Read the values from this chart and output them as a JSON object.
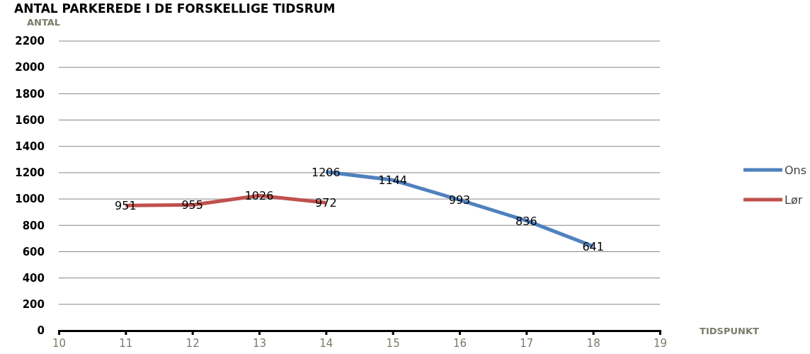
{
  "chart_data": {
    "type": "line",
    "title": "ANTAL PARKEREDE I DE FORSKELLIGE TIDSRUM",
    "xlabel": "TIDSPUNKT",
    "ylabel": "ANTAL",
    "series": [
      {
        "name": "Ons",
        "color": "#4f81bd",
        "x": [
          14,
          15,
          16,
          17,
          18
        ],
        "values": [
          1206,
          1144,
          993,
          836,
          641
        ]
      },
      {
        "name": "Lør",
        "color": "#c0504d",
        "x": [
          11,
          12,
          13,
          14
        ],
        "values": [
          951,
          955,
          1026,
          972
        ]
      }
    ],
    "xlim": [
      10,
      19
    ],
    "xticks": [
      10,
      11,
      12,
      13,
      14,
      15,
      16,
      17,
      18,
      19
    ],
    "ylim": [
      0,
      2200
    ],
    "yticks": [
      0,
      200,
      400,
      600,
      800,
      1000,
      1200,
      1400,
      1600,
      1800,
      2000,
      2200
    ],
    "grid": "y",
    "legend": "right",
    "data_labels": true,
    "marker": "none",
    "line_style": "solid"
  }
}
